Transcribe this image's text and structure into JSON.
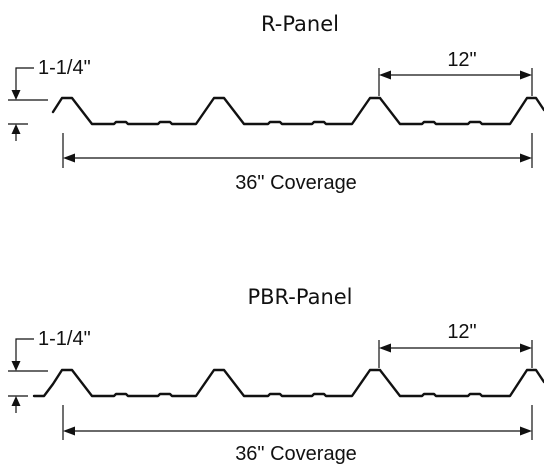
{
  "panels": [
    {
      "title": "R-Panel",
      "rib_height": "1-1/4\"",
      "rib_spacing": "12\"",
      "coverage": "36\" Coverage"
    },
    {
      "title": "PBR-Panel",
      "rib_height": "1-1/4\"",
      "rib_spacing": "12\"",
      "coverage": "36\" Coverage"
    }
  ]
}
